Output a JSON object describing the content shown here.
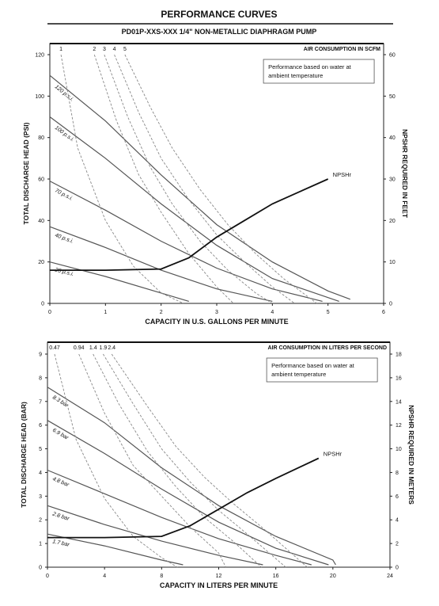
{
  "header": {
    "title": "PERFORMANCE CURVES",
    "subtitle": "PD01P-XXS-XXX  1/4\" NON-METALLIC DIAPHRAGM PUMP"
  },
  "chart_data": [
    {
      "type": "line",
      "x_label": "CAPACITY IN U.S. GALLONS PER MINUTE",
      "y_label": "TOTAL DISCHARGE HEAD (PSI)",
      "y2_label": "NPSHR REQUIRED IN FEET",
      "air_label": "AIR CONSUMPTION IN SCFM",
      "annotation": [
        "Performance based on water at",
        "ambient temperature"
      ],
      "xlim": [
        0,
        6
      ],
      "xticks": [
        0,
        1,
        2,
        3,
        4,
        5,
        6
      ],
      "ylim": [
        0,
        120
      ],
      "yticks": [
        0,
        20,
        40,
        60,
        80,
        100,
        120
      ],
      "y2lim": [
        0,
        60
      ],
      "y2ticks": [
        0,
        10,
        20,
        30,
        40,
        50,
        60
      ],
      "series": [
        {
          "name": "120 p.s.i.",
          "color": "#555555",
          "x": [
            0,
            1,
            2,
            3,
            4,
            5,
            5.4
          ],
          "values": [
            110,
            88,
            62,
            38,
            20,
            6,
            2
          ]
        },
        {
          "name": "100 p.s.i.",
          "color": "#555555",
          "x": [
            0,
            1,
            2,
            3,
            4,
            5.2
          ],
          "values": [
            90,
            70,
            48,
            28,
            12,
            1
          ]
        },
        {
          "name": "70 p.s.i.",
          "color": "#555555",
          "x": [
            0,
            1,
            2,
            3,
            4,
            4.9
          ],
          "values": [
            59,
            45,
            30,
            17,
            7,
            1
          ]
        },
        {
          "name": "40 p.s.i.",
          "color": "#555555",
          "x": [
            0,
            1,
            2,
            3,
            4
          ],
          "values": [
            37,
            27,
            16,
            7,
            1
          ]
        },
        {
          "name": "25 p.s.i.",
          "color": "#555555",
          "x": [
            0,
            1,
            2,
            2.5
          ],
          "values": [
            20,
            13,
            5,
            1
          ]
        },
        {
          "name": "1",
          "color": "#888888",
          "dashed": true,
          "x": [
            0.2,
            0.5,
            1,
            1.5,
            2,
            2.4
          ],
          "values": [
            120,
            75,
            40,
            18,
            5,
            0
          ]
        },
        {
          "name": "2",
          "color": "#888888",
          "dashed": true,
          "x": [
            0.8,
            1.2,
            1.6,
            2,
            2.5,
            3,
            3.3
          ],
          "values": [
            120,
            88,
            62,
            44,
            24,
            8,
            0
          ]
        },
        {
          "name": "3",
          "color": "#888888",
          "dashed": true,
          "x": [
            0.98,
            1.4,
            1.8,
            2.2,
            2.7,
            3.2,
            3.7,
            4.0
          ],
          "values": [
            120,
            90,
            66,
            48,
            30,
            16,
            5,
            0
          ]
        },
        {
          "name": "4",
          "color": "#888888",
          "dashed": true,
          "x": [
            1.16,
            1.6,
            2,
            2.5,
            3,
            3.5,
            4,
            4.4
          ],
          "values": [
            120,
            92,
            70,
            50,
            33,
            20,
            8,
            0
          ]
        },
        {
          "name": "5",
          "color": "#888888",
          "dashed": true,
          "x": [
            1.35,
            1.8,
            2.2,
            2.7,
            3.2,
            3.7,
            4.2,
            4.8
          ],
          "values": [
            120,
            95,
            75,
            55,
            38,
            24,
            12,
            0
          ]
        },
        {
          "name": "NPSHr",
          "color": "#111111",
          "axis": "y2",
          "x": [
            0,
            1,
            2,
            2.5,
            3,
            3.5,
            4,
            4.5,
            5
          ],
          "values": [
            8,
            8,
            8.3,
            11,
            16,
            20,
            24,
            27,
            30
          ]
        }
      ]
    },
    {
      "type": "line",
      "x_label": "CAPACITY IN LITERS PER MINUTE",
      "y_label": "TOTAL DISCHARGE HEAD (BAR)",
      "y2_label": "NPSHR REQUIRED IN METERS",
      "air_label": "AIR CONSUMPTION IN LITERS PER SECOND",
      "annotation": [
        "Performance based on water at",
        "ambient temperature"
      ],
      "xlim": [
        0,
        24
      ],
      "xticks": [
        0,
        4,
        8,
        12,
        16,
        20,
        24
      ],
      "ylim": [
        0,
        9
      ],
      "yticks": [
        0,
        1,
        2,
        3,
        4,
        5,
        6,
        7,
        8,
        9
      ],
      "y2lim": [
        0,
        18
      ],
      "y2ticks": [
        0,
        2,
        4,
        6,
        8,
        10,
        12,
        14,
        16,
        18
      ],
      "series": [
        {
          "name": "8.3 bar",
          "color": "#555555",
          "x": [
            0,
            4,
            8,
            12,
            16,
            20,
            20.2
          ],
          "values": [
            7.6,
            6.1,
            4.2,
            2.6,
            1.3,
            0.3,
            0.1
          ]
        },
        {
          "name": "6.9 bar",
          "color": "#555555",
          "x": [
            0,
            4,
            8,
            12,
            16,
            19.7
          ],
          "values": [
            6.2,
            4.8,
            3.3,
            1.9,
            0.8,
            0.1
          ]
        },
        {
          "name": "4.8 bar",
          "color": "#555555",
          "x": [
            0,
            4,
            8,
            12,
            16,
            18.5
          ],
          "values": [
            4.1,
            3.1,
            2.1,
            1.2,
            0.5,
            0.1
          ]
        },
        {
          "name": "2.8 bar",
          "color": "#555555",
          "x": [
            0,
            4,
            8,
            12,
            15.1
          ],
          "values": [
            2.6,
            1.8,
            1.1,
            0.5,
            0.1
          ]
        },
        {
          "name": "1.7 bar",
          "color": "#555555",
          "x": [
            0,
            4,
            8,
            9.5
          ],
          "values": [
            1.4,
            0.9,
            0.3,
            0.1
          ]
        },
        {
          "name": "0.47",
          "color": "#888888",
          "dashed": true,
          "x": [
            0.5,
            2,
            4,
            6,
            8,
            9.1
          ],
          "values": [
            9,
            5.4,
            2.9,
            1.3,
            0.4,
            0
          ]
        },
        {
          "name": "0.94",
          "color": "#888888",
          "dashed": true,
          "x": [
            2.2,
            4,
            6,
            8,
            10,
            12,
            12.5
          ],
          "values": [
            9,
            6.5,
            4.3,
            3.0,
            1.7,
            0.6,
            0
          ]
        },
        {
          "name": "1.4",
          "color": "#888888",
          "dashed": true,
          "x": [
            3.2,
            5,
            7,
            9,
            11,
            13,
            15
          ],
          "values": [
            9,
            6.9,
            4.9,
            3.4,
            2.1,
            1.1,
            0
          ]
        },
        {
          "name": "1.9",
          "color": "#888888",
          "dashed": true,
          "x": [
            3.9,
            6,
            8,
            10,
            12,
            14,
            16.7
          ],
          "values": [
            9,
            6.9,
            5.0,
            3.6,
            2.4,
            1.4,
            0
          ]
        },
        {
          "name": "2.4",
          "color": "#888888",
          "dashed": true,
          "x": [
            4.5,
            7,
            9,
            11,
            13,
            15,
            18.2
          ],
          "values": [
            9,
            6.8,
            5.1,
            3.8,
            2.7,
            1.7,
            0
          ]
        },
        {
          "name": "NPSHr",
          "color": "#111111",
          "axis": "y2",
          "x": [
            0,
            4,
            8,
            10,
            12,
            14,
            16,
            19
          ],
          "values": [
            2.5,
            2.5,
            2.6,
            3.5,
            4.9,
            6.3,
            7.5,
            9.2
          ]
        }
      ]
    }
  ]
}
